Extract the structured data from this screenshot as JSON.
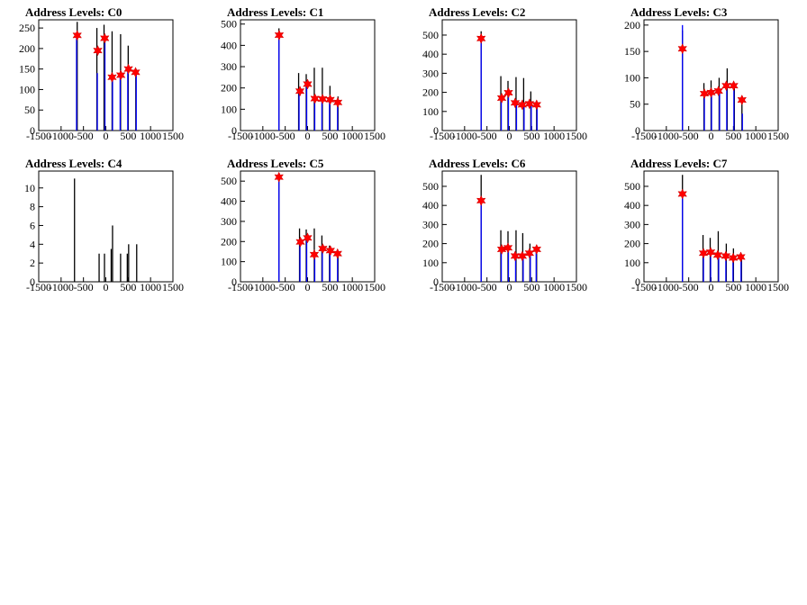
{
  "chart_data": [
    {
      "type": "bar",
      "title": "Address Levels: C0",
      "xlabel": "",
      "ylabel": "",
      "xlim": [
        -1500,
        1500
      ],
      "ylim": [
        0,
        270
      ],
      "xticks": [
        -1500,
        -1000,
        -500,
        0,
        500,
        1000,
        1500
      ],
      "yticks": [
        0,
        50,
        100,
        150,
        200,
        250
      ],
      "series": [
        {
          "color": "#000000",
          "x": [
            -640,
            -200,
            -40,
            140,
            330,
            500,
            670
          ],
          "values": [
            265,
            250,
            258,
            242,
            235,
            207,
            150
          ]
        },
        {
          "color": "#0000ff",
          "x": [
            -655,
            -190,
            -20,
            150,
            320,
            490,
            680
          ],
          "values": [
            238,
            140,
            230,
            135,
            140,
            150,
            145
          ]
        }
      ],
      "markers": {
        "color": "#ff0000",
        "shape": "star",
        "x": [
          -640,
          -180,
          -25,
          140,
          335,
          505,
          665
        ],
        "values": [
          232,
          195,
          225,
          130,
          135,
          150,
          142
        ]
      }
    },
    {
      "type": "bar",
      "title": "Address Levels: C1",
      "xlabel": "",
      "ylabel": "",
      "xlim": [
        -1500,
        1500
      ],
      "ylim": [
        0,
        520
      ],
      "xticks": [
        -1500,
        -1000,
        -500,
        0,
        500,
        1000,
        1500
      ],
      "yticks": [
        0,
        100,
        200,
        300,
        400,
        500
      ],
      "series": [
        {
          "color": "#000000",
          "x": [
            -640,
            -200,
            -30,
            150,
            330,
            500,
            680
          ],
          "values": [
            480,
            270,
            265,
            295,
            295,
            210,
            160
          ]
        },
        {
          "color": "#0000ff",
          "x": [
            -640,
            -190,
            -20,
            160,
            320,
            490,
            670
          ],
          "values": [
            455,
            190,
            225,
            160,
            150,
            150,
            140
          ]
        }
      ],
      "markers": {
        "color": "#ff0000",
        "shape": "star",
        "x": [
          -635,
          -170,
          0,
          165,
          335,
          505,
          675
        ],
        "values": [
          448,
          185,
          218,
          150,
          148,
          145,
          132
        ]
      }
    },
    {
      "type": "bar",
      "title": "Address Levels: C2",
      "xlabel": "",
      "ylabel": "",
      "xlim": [
        -1500,
        1500
      ],
      "ylim": [
        0,
        580
      ],
      "xticks": [
        -1500,
        -1000,
        -500,
        0,
        500,
        1000,
        1500
      ],
      "yticks": [
        0,
        100,
        200,
        300,
        400,
        500
      ],
      "series": [
        {
          "color": "#000000",
          "x": [
            -630,
            -190,
            -30,
            150,
            320,
            480,
            610
          ],
          "values": [
            520,
            285,
            260,
            280,
            275,
            205,
            150
          ]
        },
        {
          "color": "#0000ff",
          "x": [
            -630,
            -180,
            -20,
            160,
            330,
            490,
            620
          ],
          "values": [
            495,
            175,
            200,
            150,
            140,
            140,
            140
          ]
        }
      ],
      "markers": {
        "color": "#ff0000",
        "shape": "star",
        "x": [
          -630,
          -170,
          -20,
          130,
          290,
          450,
          610
        ],
        "values": [
          482,
          170,
          198,
          145,
          135,
          140,
          135
        ]
      }
    },
    {
      "type": "bar",
      "title": "Address Levels: C3",
      "xlabel": "",
      "ylabel": "",
      "xlim": [
        -1500,
        1500
      ],
      "ylim": [
        0,
        210
      ],
      "xticks": [
        -1500,
        -1000,
        -500,
        0,
        500,
        1000,
        1500
      ],
      "yticks": [
        0,
        50,
        100,
        150,
        200
      ],
      "series": [
        {
          "color": "#000000",
          "x": [
            -640,
            -160,
            0,
            180,
            360,
            520,
            690
          ],
          "values": [
            190,
            90,
            95,
            100,
            118,
            90,
            60
          ]
        },
        {
          "color": "#0000ff",
          "x": [
            -640,
            -150,
            10,
            190,
            350,
            510,
            700
          ],
          "values": [
            200,
            72,
            75,
            75,
            85,
            85,
            32
          ]
        }
      ],
      "markers": {
        "color": "#ff0000",
        "shape": "star",
        "x": [
          -640,
          -150,
          0,
          165,
          340,
          505,
          690
        ],
        "values": [
          155,
          70,
          72,
          75,
          85,
          85,
          58
        ]
      }
    },
    {
      "type": "bar",
      "title": "Address Levels: C4",
      "xlabel": "",
      "ylabel": "",
      "xlim": [
        -1500,
        1500
      ],
      "ylim": [
        0,
        11.8
      ],
      "xticks": [
        -1500,
        -1000,
        -500,
        0,
        500,
        1000,
        1500
      ],
      "yticks": [
        0,
        2,
        4,
        6,
        8,
        10
      ],
      "series": [
        {
          "color": "#000000",
          "x": [
            -700,
            -150,
            -30,
            120,
            150,
            330,
            480,
            510,
            690
          ],
          "values": [
            11,
            3,
            3,
            3.5,
            6,
            3,
            3,
            4,
            4
          ]
        }
      ]
    },
    {
      "type": "bar",
      "title": "Address Levels: C5",
      "xlabel": "",
      "ylabel": "",
      "xlim": [
        -1500,
        1500
      ],
      "ylim": [
        0,
        550
      ],
      "xticks": [
        -1500,
        -1000,
        -500,
        0,
        500,
        1000,
        1500
      ],
      "yticks": [
        0,
        100,
        200,
        300,
        400,
        500
      ],
      "series": [
        {
          "color": "#000000",
          "x": [
            -640,
            -180,
            -30,
            150,
            320,
            490,
            680
          ],
          "values": [
            500,
            265,
            260,
            265,
            230,
            180,
            150
          ]
        },
        {
          "color": "#0000ff",
          "x": [
            -640,
            -170,
            -20,
            160,
            330,
            500,
            670
          ],
          "values": [
            520,
            200,
            215,
            145,
            160,
            150,
            145
          ]
        }
      ],
      "markers": {
        "color": "#ff0000",
        "shape": "star",
        "x": [
          -640,
          -160,
          0,
          150,
          340,
          510,
          670
        ],
        "values": [
          520,
          198,
          218,
          135,
          165,
          155,
          140
        ]
      }
    },
    {
      "type": "bar",
      "title": "Address Levels: C6",
      "xlabel": "",
      "ylabel": "",
      "xlim": [
        -1500,
        1500
      ],
      "ylim": [
        0,
        580
      ],
      "xticks": [
        -1500,
        -1000,
        -500,
        0,
        500,
        1000,
        1500
      ],
      "yticks": [
        0,
        100,
        200,
        300,
        400,
        500
      ],
      "series": [
        {
          "color": "#000000",
          "x": [
            -630,
            -190,
            -30,
            150,
            300,
            460,
            610
          ],
          "values": [
            560,
            270,
            265,
            270,
            255,
            200,
            160
          ]
        },
        {
          "color": "#0000ff",
          "x": [
            -630,
            -180,
            -20,
            140,
            310,
            470,
            600
          ],
          "values": [
            430,
            175,
            185,
            140,
            140,
            150,
            170
          ]
        }
      ],
      "markers": {
        "color": "#ff0000",
        "shape": "star",
        "x": [
          -630,
          -170,
          -30,
          130,
          290,
          450,
          610
        ],
        "values": [
          425,
          170,
          178,
          135,
          135,
          150,
          170
        ]
      }
    },
    {
      "type": "bar",
      "title": "Address Levels: C7",
      "xlabel": "",
      "ylabel": "",
      "xlim": [
        -1500,
        1500
      ],
      "ylim": [
        0,
        580
      ],
      "xticks": [
        -1500,
        -1000,
        -500,
        0,
        500,
        1000,
        1500
      ],
      "yticks": [
        0,
        100,
        200,
        300,
        400,
        500
      ],
      "series": [
        {
          "color": "#000000",
          "x": [
            -640,
            -180,
            -20,
            160,
            340,
            500,
            680
          ],
          "values": [
            560,
            245,
            230,
            265,
            200,
            175,
            140
          ]
        },
        {
          "color": "#0000ff",
          "x": [
            -640,
            -170,
            -10,
            170,
            330,
            490,
            670
          ],
          "values": [
            460,
            150,
            155,
            140,
            140,
            130,
            130
          ]
        }
      ],
      "markers": {
        "color": "#ff0000",
        "shape": "star",
        "x": [
          -640,
          -170,
          -10,
          150,
          330,
          495,
          665
        ],
        "values": [
          460,
          150,
          155,
          140,
          135,
          125,
          130
        ]
      }
    }
  ]
}
